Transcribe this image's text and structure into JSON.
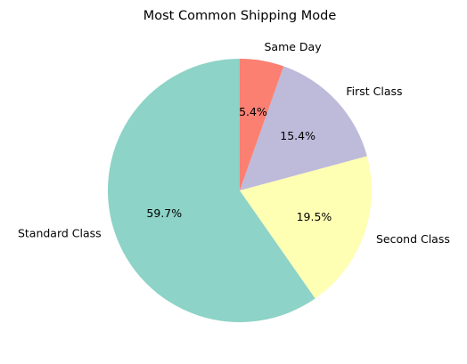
{
  "chart_data": {
    "type": "pie",
    "title": "Most Common Shipping Mode",
    "categories": [
      "Standard Class",
      "Second Class",
      "First Class",
      "Same Day"
    ],
    "values": [
      59.7,
      19.5,
      15.4,
      5.4
    ],
    "percent_labels": [
      "59.7%",
      "19.5%",
      "15.4%",
      "5.4%"
    ],
    "colors": [
      "#8dd3c7",
      "#ffffb3",
      "#bebada",
      "#fb8072"
    ],
    "start_angle_deg": 90,
    "direction": "counterclockwise",
    "legend": "none"
  }
}
